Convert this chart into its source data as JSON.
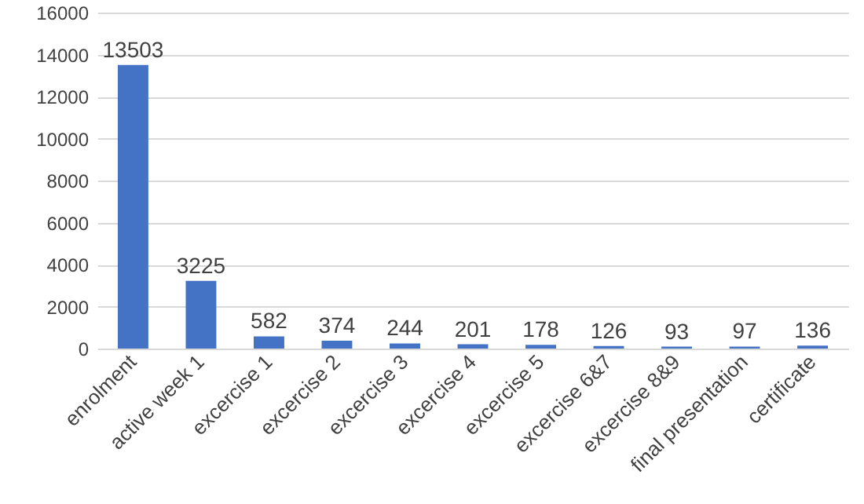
{
  "chart_data": {
    "type": "bar",
    "categories": [
      "enrolment",
      "active week 1",
      "excercise 1",
      "excercise 2",
      "excercise 3",
      "excercise 4",
      "excercise 5",
      "excercise 6&7",
      "excercise 8&9",
      "final presentation",
      "certificate"
    ],
    "values": [
      13503,
      3225,
      582,
      374,
      244,
      201,
      178,
      126,
      93,
      97,
      136
    ],
    "color": "#4472c4",
    "ylim": [
      0,
      16000
    ],
    "yticks": [
      0,
      2000,
      4000,
      6000,
      8000,
      10000,
      12000,
      14000,
      16000
    ],
    "grid": "y",
    "data_labels": true
  }
}
